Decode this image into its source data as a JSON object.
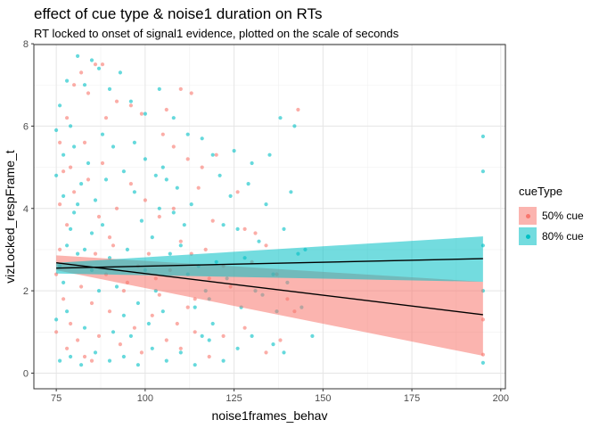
{
  "title": "effect of cue type & noise1 duration on RTs",
  "subtitle": "RT locked to onset of signal1 evidence, plotted on the scale of seconds",
  "legend": {
    "title": "cueType",
    "items": [
      {
        "label": "50% cue",
        "color": "#F8766D"
      },
      {
        "label": "80% cue",
        "color": "#00BFC4"
      }
    ]
  },
  "chart_data": {
    "type": "scatter",
    "title": "effect of cue type & noise1 duration on RTs",
    "subtitle": "RT locked to onset of signal1 evidence, plotted on the scale of seconds",
    "xlabel": "noise1frames_behav",
    "ylabel": "vizLocked_respFrame_t",
    "xlim": [
      68.7,
      201.3
    ],
    "ylim": [
      -0.38,
      7.98
    ],
    "x_ticks": [
      75,
      100,
      125,
      150,
      175,
      200
    ],
    "y_ticks": [
      0,
      2,
      4,
      6,
      8
    ],
    "grid": true,
    "legend_position": "right",
    "legend_title": "cueType",
    "series": [
      {
        "name": "50% cue",
        "color": "#F8766D",
        "points": [
          [
            76,
            5.6
          ],
          [
            77,
            4.9
          ],
          [
            78,
            6.2
          ],
          [
            80,
            7.0
          ],
          [
            82,
            7.3
          ],
          [
            84,
            6.8
          ],
          [
            86,
            7.5
          ],
          [
            88,
            7.5
          ],
          [
            89,
            6.2
          ],
          [
            92,
            6.6
          ],
          [
            96,
            6.5
          ],
          [
            99,
            6.3
          ],
          [
            106,
            6.4
          ],
          [
            110,
            6.9
          ],
          [
            113,
            6.8
          ],
          [
            105,
            5.8
          ],
          [
            108,
            5.5
          ],
          [
            112,
            5.2
          ],
          [
            116,
            5.0
          ],
          [
            120,
            5.3
          ],
          [
            143,
            6.4
          ],
          [
            126,
            4.4
          ],
          [
            128,
            3.5
          ],
          [
            131,
            3.4
          ],
          [
            134,
            3.1
          ],
          [
            137,
            2.4
          ],
          [
            140,
            1.8
          ],
          [
            142,
            1.5
          ],
          [
            130,
            2.7
          ],
          [
            124,
            2.1
          ],
          [
            118,
            2.3
          ],
          [
            114,
            1.8
          ],
          [
            110,
            3.2
          ],
          [
            104,
            3.8
          ],
          [
            100,
            4.2
          ],
          [
            96,
            4.6
          ],
          [
            92,
            4.0
          ],
          [
            88,
            5.1
          ],
          [
            84,
            4.7
          ],
          [
            80,
            4.4
          ],
          [
            78,
            3.6
          ],
          [
            76,
            3.0
          ],
          [
            75,
            2.4
          ],
          [
            77,
            1.8
          ],
          [
            79,
            1.2
          ],
          [
            81,
            0.8
          ],
          [
            83,
            0.4
          ],
          [
            85,
            0.3
          ],
          [
            87,
            0.9
          ],
          [
            90,
            1.5
          ],
          [
            94,
            2.0
          ],
          [
            98,
            2.6
          ],
          [
            102,
            1.4
          ],
          [
            106,
            0.8
          ],
          [
            110,
            0.6
          ],
          [
            114,
            1.0
          ],
          [
            118,
            0.4
          ],
          [
            122,
            0.9
          ],
          [
            128,
            1.1
          ],
          [
            134,
            0.5
          ],
          [
            138,
            0.8
          ],
          [
            195,
            1.3
          ],
          [
            195,
            0.45
          ],
          [
            86,
            2.9
          ],
          [
            90,
            3.3
          ],
          [
            95,
            2.2
          ],
          [
            101,
            2.9
          ],
          [
            107,
            2.5
          ],
          [
            112,
            1.6
          ],
          [
            117,
            3.0
          ],
          [
            122,
            2.6
          ],
          [
            76,
            4.1
          ],
          [
            79,
            5.0
          ],
          [
            83,
            5.6
          ],
          [
            87,
            3.8
          ],
          [
            91,
            3.1
          ],
          [
            97,
            1.1
          ],
          [
            103,
            2.3
          ],
          [
            108,
            4.0
          ],
          [
            115,
            4.5
          ],
          [
            119,
            3.7
          ],
          [
            75,
            1.0
          ],
          [
            78,
            0.6
          ],
          [
            82,
            2.1
          ],
          [
            85,
            1.7
          ],
          [
            89,
            2.4
          ],
          [
            93,
            0.7
          ],
          [
            99,
            0.5
          ],
          [
            104,
            1.9
          ],
          [
            109,
            1.2
          ],
          [
            113,
            2.9
          ]
        ]
      },
      {
        "name": "80% cue",
        "color": "#00BFC4",
        "points": [
          [
            75,
            5.9
          ],
          [
            76,
            6.5
          ],
          [
            77,
            4.3
          ],
          [
            78,
            7.1
          ],
          [
            79,
            6.0
          ],
          [
            80,
            5.5
          ],
          [
            81,
            7.7
          ],
          [
            83,
            7.0
          ],
          [
            85,
            7.6
          ],
          [
            87,
            7.4
          ],
          [
            90,
            6.9
          ],
          [
            93,
            7.3
          ],
          [
            96,
            6.6
          ],
          [
            100,
            6.3
          ],
          [
            104,
            6.9
          ],
          [
            108,
            6.2
          ],
          [
            112,
            5.8
          ],
          [
            116,
            5.7
          ],
          [
            119,
            5.3
          ],
          [
            125,
            5.4
          ],
          [
            130,
            5.1
          ],
          [
            135,
            5.3
          ],
          [
            138,
            6.2
          ],
          [
            142,
            6.0
          ],
          [
            141,
            4.4
          ],
          [
            139,
            3.5
          ],
          [
            136,
            2.4
          ],
          [
            133,
            1.9
          ],
          [
            130,
            0.9
          ],
          [
            126,
            0.6
          ],
          [
            122,
            0.3
          ],
          [
            118,
            0.8
          ],
          [
            114,
            0.2
          ],
          [
            110,
            0.5
          ],
          [
            106,
            0.3
          ],
          [
            102,
            0.6
          ],
          [
            98,
            0.2
          ],
          [
            94,
            0.4
          ],
          [
            90,
            0.3
          ],
          [
            86,
            0.5
          ],
          [
            82,
            0.2
          ],
          [
            79,
            0.4
          ],
          [
            76,
            0.3
          ],
          [
            75,
            1.3
          ],
          [
            77,
            2.2
          ],
          [
            78,
            3.1
          ],
          [
            80,
            3.9
          ],
          [
            82,
            4.6
          ],
          [
            84,
            5.1
          ],
          [
            86,
            4.2
          ],
          [
            88,
            3.6
          ],
          [
            90,
            2.8
          ],
          [
            92,
            2.1
          ],
          [
            94,
            1.4
          ],
          [
            96,
            0.9
          ],
          [
            98,
            1.7
          ],
          [
            100,
            2.5
          ],
          [
            102,
            3.3
          ],
          [
            104,
            4.0
          ],
          [
            106,
            4.7
          ],
          [
            108,
            3.9
          ],
          [
            110,
            3.1
          ],
          [
            112,
            2.4
          ],
          [
            114,
            1.6
          ],
          [
            116,
            0.9
          ],
          [
            118,
            1.8
          ],
          [
            120,
            2.7
          ],
          [
            122,
            3.6
          ],
          [
            124,
            4.3
          ],
          [
            126,
            3.5
          ],
          [
            128,
            2.8
          ],
          [
            132,
            3.2
          ],
          [
            134,
            4.1
          ],
          [
            137,
            1.5
          ],
          [
            140,
            2.2
          ],
          [
            143,
            2.9
          ],
          [
            145,
            3.0
          ],
          [
            147,
            0.9
          ],
          [
            195,
            5.75
          ],
          [
            195,
            4.9
          ],
          [
            195,
            3.1
          ],
          [
            195,
            2.0
          ],
          [
            195,
            0.25
          ],
          [
            76,
            2.6
          ],
          [
            78,
            1.5
          ],
          [
            81,
            2.9
          ],
          [
            83,
            1.1
          ],
          [
            85,
            3.4
          ],
          [
            87,
            2.0
          ],
          [
            89,
            4.7
          ],
          [
            91,
            1.0
          ],
          [
            95,
            3.0
          ],
          [
            97,
            4.4
          ],
          [
            99,
            3.7
          ],
          [
            101,
            1.2
          ],
          [
            103,
            2.0
          ],
          [
            105,
            1.5
          ],
          [
            107,
            2.9
          ],
          [
            109,
            4.5
          ],
          [
            111,
            3.6
          ],
          [
            113,
            4.1
          ],
          [
            115,
            2.6
          ],
          [
            117,
            2.0
          ],
          [
            119,
            1.2
          ],
          [
            121,
            4.8
          ],
          [
            123,
            2.3
          ],
          [
            127,
            1.6
          ],
          [
            129,
            4.6
          ],
          [
            131,
            2.0
          ],
          [
            136,
            0.7
          ],
          [
            139,
            0.5
          ],
          [
            144,
            1.6
          ],
          [
            75,
            4.8
          ],
          [
            77,
            5.3
          ],
          [
            79,
            3.5
          ],
          [
            81,
            4.1
          ],
          [
            83,
            3.0
          ],
          [
            85,
            2.5
          ],
          [
            88,
            5.8
          ],
          [
            91,
            5.5
          ],
          [
            94,
            4.9
          ],
          [
            97,
            5.6
          ],
          [
            100,
            5.2
          ],
          [
            103,
            4.8
          ],
          [
            105,
            5.0
          ]
        ]
      }
    ],
    "fits": [
      {
        "name": "50% cue",
        "color": "#F8766D",
        "x": [
          75,
          195
        ],
        "y": [
          2.68,
          1.42
        ],
        "ci_lower": [
          2.5,
          0.42
        ],
        "ci_upper": [
          2.86,
          2.22
        ]
      },
      {
        "name": "80% cue",
        "color": "#00BFC4",
        "x": [
          75,
          195
        ],
        "y": [
          2.55,
          2.78
        ],
        "ci_lower": [
          2.42,
          2.22
        ],
        "ci_upper": [
          2.68,
          3.32
        ]
      }
    ]
  }
}
